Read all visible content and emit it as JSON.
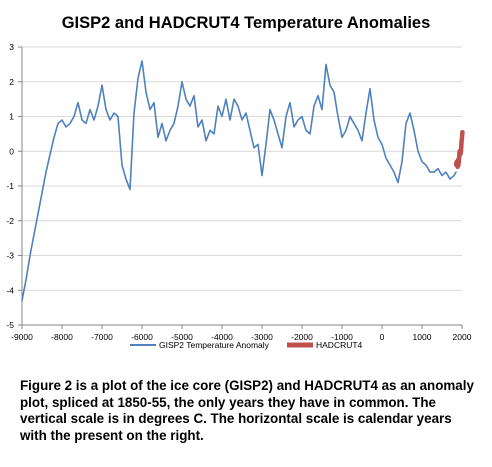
{
  "chart_data": {
    "type": "line",
    "title": "GISP2 and HADCRUT4 Temperature Anomalies",
    "xlabel": "",
    "ylabel": "",
    "xlim": [
      -9000,
      2000
    ],
    "ylim": [
      -5,
      3
    ],
    "xticks": [
      -9000,
      -8000,
      -7000,
      -6000,
      -5000,
      -4000,
      -3000,
      -2000,
      -1000,
      0,
      1000,
      2000
    ],
    "yticks": [
      -5,
      -4,
      -3,
      -2,
      -1,
      0,
      1,
      2,
      3
    ],
    "grid": true,
    "legend_position": "bottom",
    "series": [
      {
        "name": "GISP2 Temperature Anomaly",
        "color": "#4F81BD",
        "x": [
          -9000,
          -8900,
          -8800,
          -8700,
          -8600,
          -8500,
          -8400,
          -8300,
          -8200,
          -8100,
          -8000,
          -7900,
          -7800,
          -7700,
          -7600,
          -7500,
          -7400,
          -7300,
          -7200,
          -7100,
          -7000,
          -6900,
          -6800,
          -6700,
          -6600,
          -6500,
          -6400,
          -6300,
          -6200,
          -6100,
          -6000,
          -5900,
          -5800,
          -5700,
          -5600,
          -5500,
          -5400,
          -5300,
          -5200,
          -5100,
          -5000,
          -4900,
          -4800,
          -4700,
          -4600,
          -4500,
          -4400,
          -4300,
          -4200,
          -4100,
          -4000,
          -3900,
          -3800,
          -3700,
          -3600,
          -3500,
          -3400,
          -3300,
          -3200,
          -3100,
          -3000,
          -2900,
          -2800,
          -2700,
          -2600,
          -2500,
          -2400,
          -2300,
          -2200,
          -2100,
          -2000,
          -1900,
          -1800,
          -1700,
          -1600,
          -1500,
          -1400,
          -1300,
          -1200,
          -1100,
          -1000,
          -900,
          -800,
          -700,
          -600,
          -500,
          -400,
          -300,
          -200,
          -100,
          0,
          100,
          200,
          300,
          400,
          500,
          600,
          700,
          800,
          900,
          1000,
          1100,
          1200,
          1300,
          1400,
          1500,
          1600,
          1700,
          1800,
          1850
        ],
        "y": [
          -4.3,
          -3.7,
          -3.0,
          -2.4,
          -1.8,
          -1.2,
          -0.6,
          -0.1,
          0.4,
          0.8,
          0.9,
          0.7,
          0.8,
          1.0,
          1.4,
          0.9,
          0.8,
          1.2,
          0.9,
          1.3,
          1.9,
          1.2,
          0.9,
          1.1,
          1.0,
          -0.4,
          -0.8,
          -1.1,
          1.1,
          2.1,
          2.6,
          1.7,
          1.2,
          1.4,
          0.4,
          0.8,
          0.3,
          0.6,
          0.8,
          1.3,
          2.0,
          1.5,
          1.3,
          1.6,
          0.7,
          0.9,
          0.3,
          0.6,
          0.5,
          1.3,
          1.0,
          1.5,
          0.9,
          1.5,
          1.3,
          0.9,
          1.1,
          0.6,
          0.1,
          0.2,
          -0.7,
          0.2,
          1.2,
          0.9,
          0.5,
          0.1,
          1.0,
          1.4,
          0.7,
          0.9,
          1.0,
          0.6,
          0.5,
          1.3,
          1.6,
          1.2,
          2.5,
          1.9,
          1.7,
          1.0,
          0.4,
          0.6,
          1.0,
          0.8,
          0.6,
          0.3,
          1.1,
          1.8,
          0.9,
          0.4,
          0.2,
          -0.2,
          -0.4,
          -0.6,
          -0.9,
          -0.3,
          0.8,
          1.1,
          0.6,
          0.0,
          -0.3,
          -0.4,
          -0.6,
          -0.6,
          -0.5,
          -0.7,
          -0.6,
          -0.8,
          -0.7,
          -0.6
        ]
      },
      {
        "name": "HADCRUT4",
        "color": "#C0504D",
        "x": [
          1850,
          1860,
          1870,
          1880,
          1890,
          1900,
          1910,
          1920,
          1930,
          1940,
          1950,
          1960,
          1970,
          1980,
          1990,
          2000,
          2010
        ],
        "y": [
          -0.35,
          -0.4,
          -0.3,
          -0.4,
          -0.45,
          -0.25,
          -0.4,
          -0.3,
          -0.15,
          0.0,
          -0.1,
          -0.05,
          -0.05,
          0.1,
          0.3,
          0.4,
          0.55
        ]
      }
    ]
  },
  "caption": "Figure 2 is a plot of the ice core (GISP2) and HADCRUT4 as an anomaly plot, spliced at 1850-55, the only years they have in common.  The vertical scale is in degrees C. The horizontal scale is calendar years with the present on the right."
}
